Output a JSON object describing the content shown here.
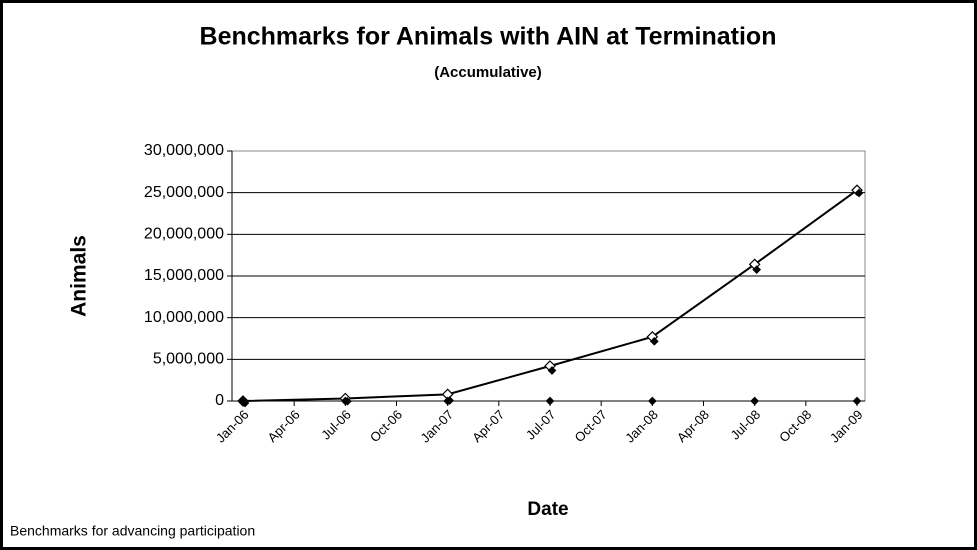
{
  "chart_data": {
    "type": "line",
    "title": "Benchmarks for Animals with AIN at Termination",
    "subtitle": "(Accumulative)",
    "x_label": "Date",
    "y_label": "Animals",
    "footer": "Benchmarks for advancing participation",
    "x": [
      "Jan-06",
      "Jul-06",
      "Jan-07",
      "Jul-07",
      "Jan-08",
      "Jul-08",
      "Jan-09"
    ],
    "xticks": [
      "Jan-06",
      "Apr-06",
      "Jul-06",
      "Oct-06",
      "Jan-07",
      "Apr-07",
      "Jul-07",
      "Oct-07",
      "Jan-08",
      "Apr-08",
      "Jul-08",
      "Oct-08",
      "Jan-09"
    ],
    "series": [
      {
        "color": "#000000",
        "marker": "open-diamond",
        "show_line": true,
        "values": [
          0,
          300000,
          800000,
          4200000,
          7700000,
          16400000,
          25300000
        ]
      },
      {
        "color": "#000000",
        "marker": "filled-diamond",
        "show_line": false,
        "values": [
          0,
          200000,
          300000,
          3900000,
          7400000,
          16000000,
          25200000
        ]
      },
      {
        "color": "#000000",
        "marker": "filled-diamond",
        "show_line": false,
        "values": [
          0,
          0,
          0,
          0,
          0,
          0,
          0
        ]
      }
    ],
    "ylim": [
      0,
      30000000
    ],
    "yticks": [
      0,
      {
        "value": 5000000,
        "label": "5,000,000"
      },
      {
        "value": 10000000,
        "label": "10,000,000"
      },
      {
        "value": 15000000,
        "label": "15,000,000"
      },
      {
        "value": 20000000,
        "label": "20,000,000"
      },
      {
        "value": 25000000,
        "label": "25,000,000"
      },
      {
        "value": 30000000,
        "label": "30,000,000"
      }
    ],
    "grid": true
  }
}
